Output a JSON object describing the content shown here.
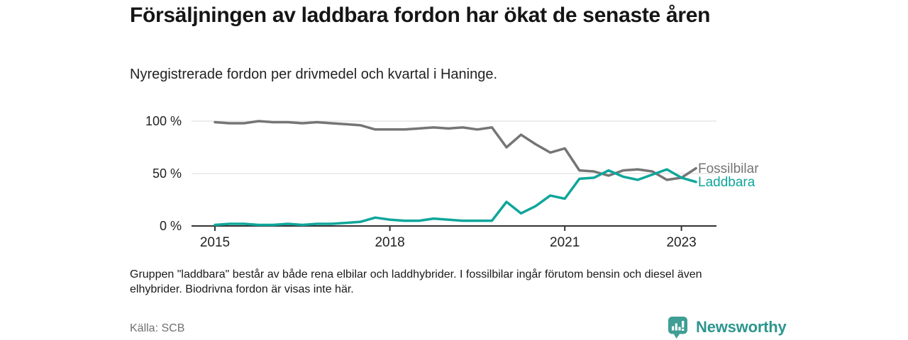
{
  "header": {
    "title": "Försäljningen av laddbara fordon har ökat de senaste åren",
    "subtitle": "Nyregistrerade fordon per drivmedel och kvartal i Haninge."
  },
  "footer": {
    "footnote": "Gruppen \"laddbara\" består av både rena elbilar och laddhybrider. I fossilbilar ingår förutom bensin och diesel även elhybrider. Biodrivna fordon är visas inte här.",
    "source": "Källa: SCB"
  },
  "brand": {
    "name": "Newsworthy",
    "logo_icon": "speech-bubble-bar-chart-icon",
    "color": "#2d968e"
  },
  "colors": {
    "fossil_line": "#757575",
    "laddbara_line": "#0fa69b",
    "grid": "#e0e0e0",
    "axis": "#333333",
    "text": "#1a1a1a",
    "muted": "#707070"
  },
  "chart_data": {
    "type": "line",
    "title": "Försäljningen av laddbara fordon har ökat de senaste åren",
    "subtitle": "Nyregistrerade fordon per drivmedel och kvartal i Haninge.",
    "x_frequency": "quarterly",
    "x_range": [
      "2015 Q1",
      "2023 Q2"
    ],
    "x_tick_labels": [
      "2015",
      "2018",
      "2021",
      "2023"
    ],
    "x_tick_indices": [
      0,
      12,
      24,
      32
    ],
    "y_ticks": [
      {
        "value": 100,
        "label": "100 %"
      },
      {
        "value": 50,
        "label": "50 %"
      },
      {
        "value": 0,
        "label": "0 %"
      }
    ],
    "ylim": [
      0,
      100
    ],
    "y_unit": "%",
    "grid": "horizontal",
    "legend_position": "end-of-line-labels",
    "series": [
      {
        "name": "Fossilbilar",
        "color": "#757575",
        "values": [
          99,
          98,
          98,
          100,
          99,
          99,
          98,
          99,
          98,
          97,
          96,
          92,
          92,
          92,
          93,
          94,
          93,
          94,
          92,
          94,
          75,
          87,
          78,
          70,
          74,
          53,
          52,
          48,
          53,
          54,
          52,
          44,
          46,
          55
        ]
      },
      {
        "name": "Laddbara",
        "color": "#0fa69b",
        "values": [
          1,
          2,
          2,
          1,
          1,
          2,
          1,
          2,
          2,
          3,
          4,
          8,
          6,
          5,
          5,
          7,
          6,
          5,
          5,
          5,
          23,
          12,
          19,
          29,
          26,
          45,
          46,
          53,
          47,
          44,
          49,
          54,
          46,
          42
        ]
      }
    ]
  }
}
